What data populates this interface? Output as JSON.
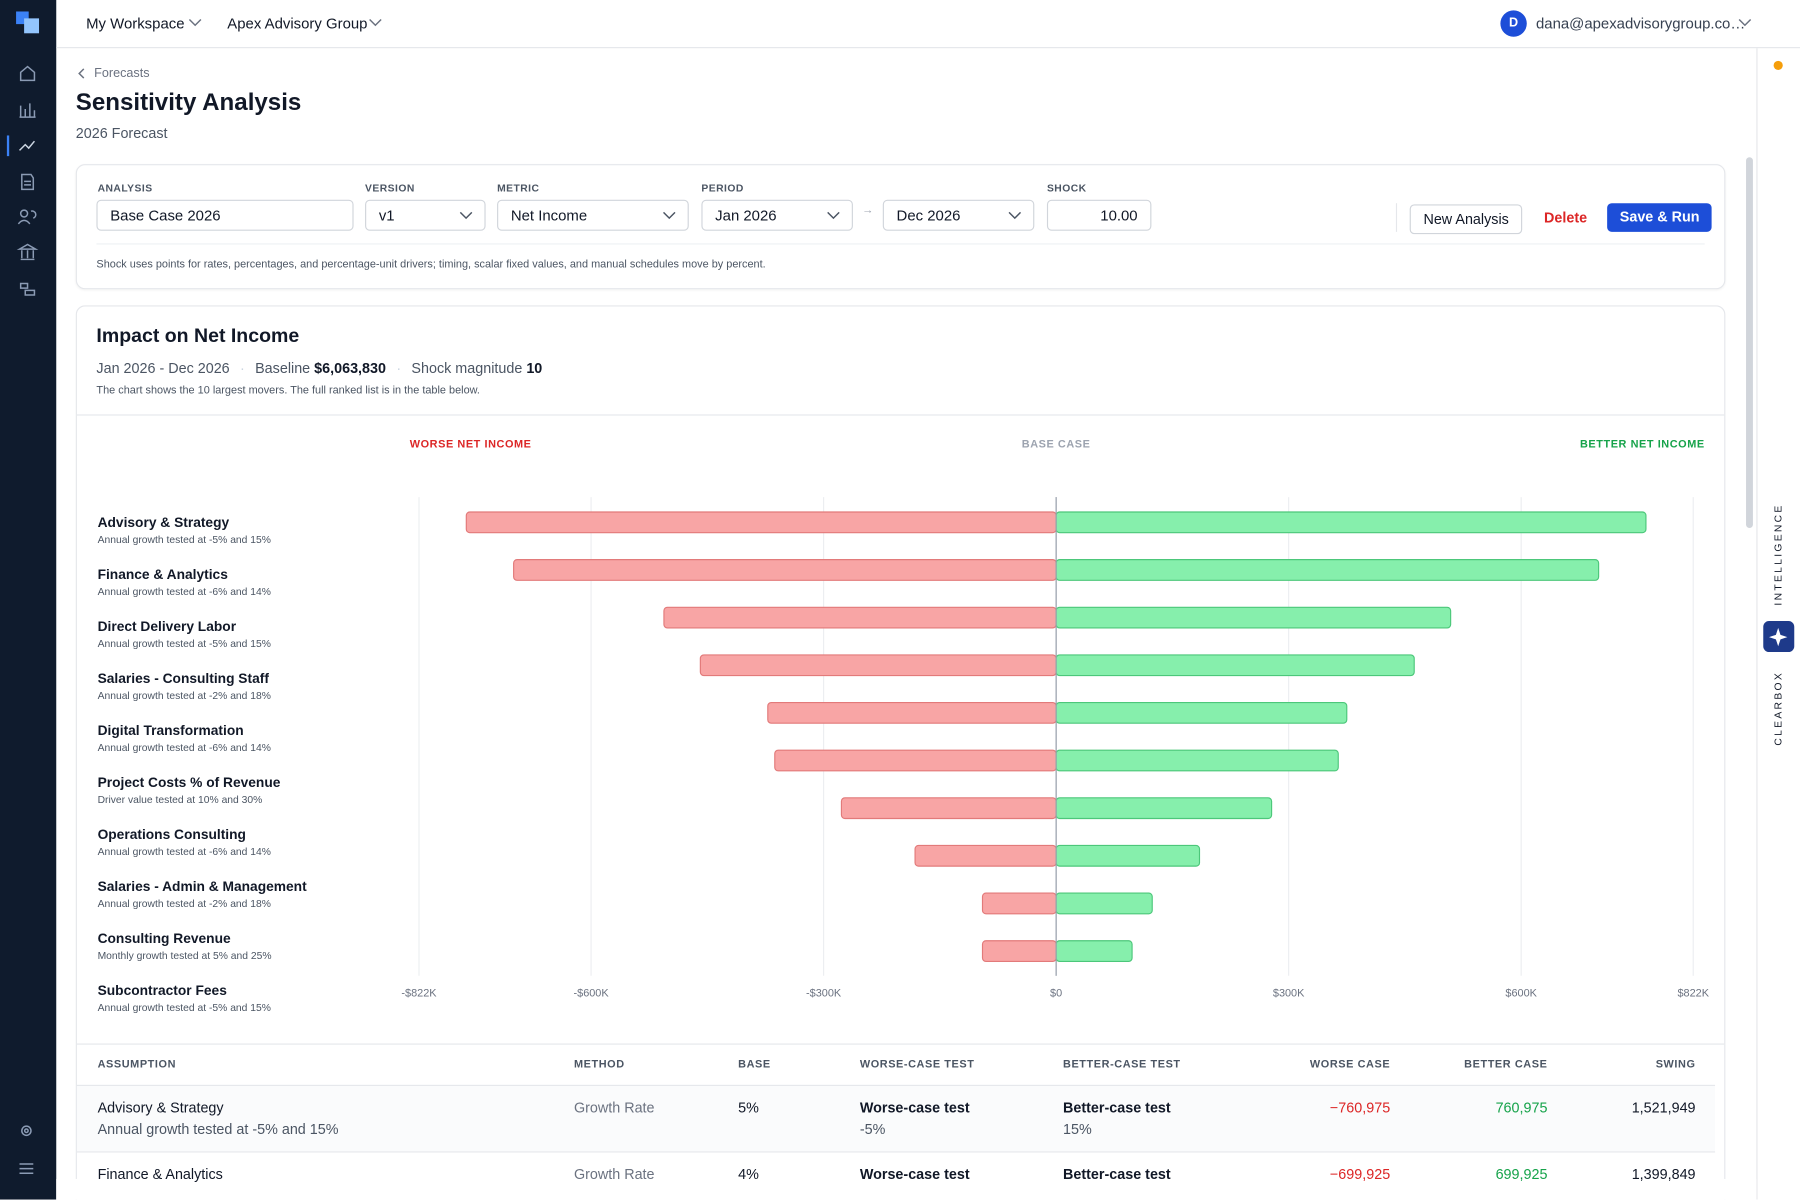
{
  "topbar": {
    "workspace": "My Workspace",
    "org": "Apex Advisory Group",
    "avatar": "D",
    "user": "dana@apexadvisorygroup.co…"
  },
  "breadcrumb": "Forecasts",
  "header": {
    "title": "Sensitivity Analysis",
    "subtitle": "2026 Forecast"
  },
  "form": {
    "analysis_label": "ANALYSIS",
    "analysis": "Base Case 2026",
    "version_label": "VERSION",
    "version": "v1",
    "metric_label": "METRIC",
    "metric": "Net Income",
    "period_label": "PERIOD",
    "period_start": "Jan 2026",
    "period_end": "Dec 2026",
    "shock_label": "SHOCK",
    "shock": "10.00",
    "new_button": "New Analysis",
    "delete_button": "Delete",
    "save_button": "Save & Run",
    "note": "Shock uses points for rates, percentages, and percentage-unit drivers; timing, scalar fixed values, and manual schedules move by percent."
  },
  "impact": {
    "title": "Impact on Net Income",
    "range": "Jan 2026 - Dec 2026",
    "baseline_label": "Baseline",
    "baseline": "$6,063,830",
    "shock_label": "Shock magnitude",
    "shock": "10",
    "note": "The chart shows the 10 largest movers. The full ranked list is in the table below."
  },
  "chart_data": {
    "type": "tornado",
    "worse_label": "WORSE NET INCOME",
    "base_label": "BASE CASE",
    "better_label": "BETTER NET INCOME",
    "categories": [
      "Advisory & Strategy",
      "Finance & Analytics",
      "Direct Delivery Labor",
      "Salaries - Consulting Staff",
      "Digital Transformation",
      "Project Costs % of Revenue",
      "Operations Consulting",
      "Salaries - Admin & Management",
      "Consulting Revenue",
      "Subcontractor Fees"
    ],
    "descriptions": [
      "Annual growth tested at -5% and 15%",
      "Annual growth tested at -6% and 14%",
      "Annual growth tested at -5% and 15%",
      "Annual growth tested at -2% and 18%",
      "Annual growth tested at -6% and 14%",
      "Driver value tested at 10% and 30%",
      "Annual growth tested at -6% and 14%",
      "Annual growth tested at -2% and 18%",
      "Monthly growth tested at 5% and 25%",
      "Annual growth tested at -5% and 15%"
    ],
    "worse": {
      "color": "#f8a5a5",
      "values": [
        -760975,
        -699925,
        -506000,
        -459000,
        -372000,
        -363000,
        -277000,
        -182000,
        -95000,
        -95000
      ]
    },
    "better": {
      "color": "#86efac",
      "values": [
        760975,
        699925,
        509000,
        462000,
        375000,
        364000,
        278000,
        185000,
        124000,
        98000
      ]
    },
    "xlim": [
      -822000,
      822000
    ],
    "xticks": [
      {
        "value": -822000,
        "label": "-$822K"
      },
      {
        "value": -600000,
        "label": "-$600K"
      },
      {
        "value": -300000,
        "label": "-$300K"
      },
      {
        "value": 0,
        "label": "$0"
      },
      {
        "value": 300000,
        "label": "$300K"
      },
      {
        "value": 600000,
        "label": "$600K"
      },
      {
        "value": 822000,
        "label": "$822K"
      }
    ],
    "grid": true
  },
  "table": {
    "columns": [
      "ASSUMPTION",
      "METHOD",
      "BASE",
      "WORSE-CASE TEST",
      "BETTER-CASE TEST",
      "WORSE CASE",
      "BETTER CASE",
      "SWING"
    ],
    "rows": [
      {
        "assumption": "Advisory & Strategy",
        "detail": "Annual growth tested at -5% and 15%",
        "method": "Growth Rate",
        "base": "5%",
        "worse_test": "Worse-case test",
        "worse_test_value": "-5%",
        "better_test": "Better-case test",
        "better_test_value": "15%",
        "worse": "−760,975",
        "better": "760,975",
        "swing": "1,521,949"
      },
      {
        "assumption": "Finance & Analytics",
        "method": "Growth Rate",
        "base": "4%",
        "worse_test": "Worse-case test",
        "better_test": "Better-case test",
        "worse": "−699,925",
        "better": "699,925",
        "swing": "1,399,849"
      }
    ]
  },
  "side": {
    "intelligence": "INTELLIGENCE",
    "clearbox": "CLEARBOX"
  }
}
